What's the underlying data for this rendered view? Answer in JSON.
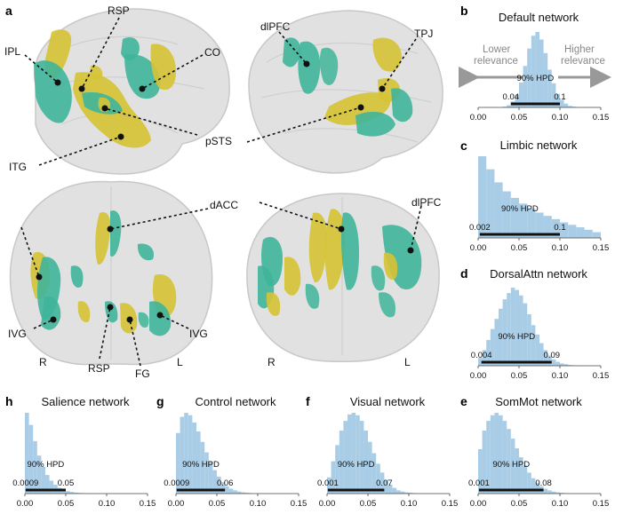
{
  "panel_labels": {
    "a": "a",
    "b": "b",
    "c": "c",
    "d": "d",
    "e": "e",
    "f": "f",
    "g": "g",
    "h": "h"
  },
  "brain_labels": {
    "rsp_top": "RSP",
    "ipl": "IPL",
    "co": "CO",
    "dlpfc_top": "dlPFC",
    "tpj": "TPJ",
    "psts": "pSTS",
    "itg": "ITG",
    "dacc": "dACC",
    "dlpfc_bottom": "dlPFC",
    "ivg_left": "IVG",
    "ivg_right": "IVG",
    "rsp_bottom": "RSP",
    "fg": "FG",
    "r_left": "R",
    "l_left": "L",
    "r_right": "R",
    "l_right": "L"
  },
  "relevance": {
    "lower": "Lower",
    "lower2": "relevance",
    "higher": "Higher",
    "higher2": "relevance"
  },
  "colors": {
    "hist_fill": "#a9cde6",
    "green": "#3fb59a",
    "yellow": "#d6c335",
    "brain": "#dcdcdc"
  },
  "chart_data": [
    {
      "type": "bar",
      "panel": "b",
      "title": "Default network",
      "x_ticks": [
        "0.00",
        "0.05",
        "0.10",
        "0.15"
      ],
      "xlim": [
        0,
        0.15
      ],
      "hpd_label": "90% HPD",
      "hpd": [
        0.04,
        0.1
      ],
      "hpd_low_label": "0.04",
      "hpd_high_label": "0.1",
      "bins": [
        0.0,
        0.005,
        0.01,
        0.015,
        0.02,
        0.025,
        0.03,
        0.035,
        0.04,
        0.045,
        0.05,
        0.055,
        0.06,
        0.065,
        0.07,
        0.075,
        0.08,
        0.085,
        0.09,
        0.095,
        0.1,
        0.105,
        0.11,
        0.115,
        0.12,
        0.125,
        0.13,
        0.135,
        0.14,
        0.145
      ],
      "values": [
        0,
        0,
        0,
        0,
        0,
        0,
        0.01,
        0.03,
        0.08,
        0.17,
        0.33,
        0.55,
        0.78,
        0.95,
        1.0,
        0.9,
        0.72,
        0.5,
        0.32,
        0.18,
        0.1,
        0.05,
        0.02,
        0.01,
        0,
        0,
        0,
        0,
        0,
        0
      ]
    },
    {
      "type": "bar",
      "panel": "c",
      "title": "Limbic network",
      "x_ticks": [
        "0.00",
        "0.05",
        "0.10",
        "0.15"
      ],
      "xlim": [
        0,
        0.15
      ],
      "hpd_label": "90% HPD",
      "hpd": [
        0.002,
        0.1
      ],
      "hpd_low_label": "0.002",
      "hpd_high_label": "0.1",
      "bins": [
        0.0,
        0.01,
        0.02,
        0.03,
        0.04,
        0.05,
        0.06,
        0.07,
        0.08,
        0.09,
        0.1,
        0.11,
        0.12,
        0.13,
        0.14
      ],
      "values": [
        1.0,
        0.84,
        0.68,
        0.57,
        0.49,
        0.42,
        0.36,
        0.31,
        0.27,
        0.23,
        0.19,
        0.16,
        0.13,
        0.1,
        0.07
      ]
    },
    {
      "type": "bar",
      "panel": "d",
      "title": "DorsalAttn network",
      "x_ticks": [
        "0.00",
        "0.05",
        "0.10",
        "0.15"
      ],
      "xlim": [
        0,
        0.15
      ],
      "hpd_label": "90% HPD",
      "hpd": [
        0.004,
        0.09
      ],
      "hpd_low_label": "0.004",
      "hpd_high_label": "0.09",
      "bins": [
        0.0,
        0.005,
        0.01,
        0.015,
        0.02,
        0.025,
        0.03,
        0.035,
        0.04,
        0.045,
        0.05,
        0.055,
        0.06,
        0.065,
        0.07,
        0.075,
        0.08,
        0.085,
        0.09,
        0.095,
        0.1,
        0.105,
        0.11,
        0.115,
        0.12,
        0.125,
        0.13,
        0.135,
        0.14,
        0.145
      ],
      "values": [
        0.1,
        0.2,
        0.33,
        0.47,
        0.6,
        0.73,
        0.85,
        0.93,
        1.0,
        0.97,
        0.9,
        0.8,
        0.66,
        0.52,
        0.4,
        0.29,
        0.2,
        0.13,
        0.08,
        0.05,
        0.03,
        0.02,
        0.01,
        0.005,
        0,
        0,
        0,
        0,
        0,
        0
      ]
    },
    {
      "type": "bar",
      "panel": "e",
      "title": "SomMot network",
      "x_ticks": [
        "0.00",
        "0.05",
        "0.10",
        "0.15"
      ],
      "xlim": [
        0,
        0.15
      ],
      "hpd_label": "90% HPD",
      "hpd": [
        0.001,
        0.08
      ],
      "hpd_low_label": "0.001",
      "hpd_high_label": "0.08",
      "bins": [
        0.0,
        0.005,
        0.01,
        0.015,
        0.02,
        0.025,
        0.03,
        0.035,
        0.04,
        0.045,
        0.05,
        0.055,
        0.06,
        0.065,
        0.07,
        0.075,
        0.08,
        0.085,
        0.09,
        0.095,
        0.1,
        0.105,
        0.11,
        0.115,
        0.12,
        0.125,
        0.13,
        0.135,
        0.14,
        0.145
      ],
      "values": [
        0.55,
        0.78,
        0.9,
        0.97,
        1.0,
        0.97,
        0.9,
        0.8,
        0.68,
        0.56,
        0.45,
        0.35,
        0.26,
        0.19,
        0.13,
        0.09,
        0.06,
        0.04,
        0.025,
        0.015,
        0.01,
        0.005,
        0,
        0,
        0,
        0,
        0,
        0,
        0,
        0
      ]
    },
    {
      "type": "bar",
      "panel": "f",
      "title": "Visual network",
      "x_ticks": [
        "0.00",
        "0.05",
        "0.10",
        "0.15"
      ],
      "xlim": [
        0,
        0.15
      ],
      "hpd_label": "90% HPD",
      "hpd": [
        0.001,
        0.07
      ],
      "hpd_low_label": "0.001",
      "hpd_high_label": "0.07",
      "bins": [
        0.0,
        0.005,
        0.01,
        0.015,
        0.02,
        0.025,
        0.03,
        0.035,
        0.04,
        0.045,
        0.05,
        0.055,
        0.06,
        0.065,
        0.07,
        0.075,
        0.08,
        0.085,
        0.09,
        0.095,
        0.1,
        0.105,
        0.11,
        0.115,
        0.12,
        0.125,
        0.13,
        0.135,
        0.14,
        0.145
      ],
      "values": [
        0.2,
        0.4,
        0.6,
        0.78,
        0.9,
        0.98,
        1.0,
        0.97,
        0.9,
        0.78,
        0.64,
        0.5,
        0.37,
        0.26,
        0.17,
        0.11,
        0.07,
        0.04,
        0.025,
        0.015,
        0.01,
        0.005,
        0,
        0,
        0,
        0,
        0,
        0,
        0,
        0
      ]
    },
    {
      "type": "bar",
      "panel": "g",
      "title": "Control network",
      "x_ticks": [
        "0.00",
        "0.05",
        "0.10",
        "0.15"
      ],
      "xlim": [
        0,
        0.15
      ],
      "hpd_label": "90% HPD",
      "hpd": [
        0.0009,
        0.06
      ],
      "hpd_low_label": "0.0009",
      "hpd_high_label": "0.06",
      "bins": [
        0.0,
        0.005,
        0.01,
        0.015,
        0.02,
        0.025,
        0.03,
        0.035,
        0.04,
        0.045,
        0.05,
        0.055,
        0.06,
        0.065,
        0.07,
        0.075,
        0.08,
        0.085,
        0.09,
        0.095,
        0.1,
        0.105,
        0.11,
        0.115,
        0.12,
        0.125,
        0.13,
        0.135,
        0.14,
        0.145
      ],
      "values": [
        0.75,
        0.95,
        1.0,
        0.97,
        0.88,
        0.77,
        0.64,
        0.51,
        0.39,
        0.29,
        0.21,
        0.14,
        0.09,
        0.06,
        0.04,
        0.025,
        0.015,
        0.01,
        0.005,
        0,
        0,
        0,
        0,
        0,
        0,
        0,
        0,
        0,
        0,
        0
      ]
    },
    {
      "type": "bar",
      "panel": "h",
      "title": "Salience network",
      "x_ticks": [
        "0.00",
        "0.05",
        "0.10",
        "0.15"
      ],
      "xlim": [
        0,
        0.15
      ],
      "hpd_label": "90% HPD",
      "hpd": [
        0.0009,
        0.05
      ],
      "hpd_low_label": "0.0009",
      "hpd_high_label": "0.05",
      "bins": [
        0.0,
        0.005,
        0.01,
        0.015,
        0.02,
        0.025,
        0.03,
        0.035,
        0.04,
        0.045,
        0.05,
        0.055,
        0.06,
        0.065,
        0.07,
        0.075,
        0.08,
        0.085,
        0.09,
        0.095,
        0.1,
        0.105,
        0.11,
        0.115,
        0.12,
        0.125,
        0.13,
        0.135,
        0.14,
        0.145
      ],
      "values": [
        1.0,
        0.85,
        0.65,
        0.47,
        0.33,
        0.23,
        0.16,
        0.11,
        0.07,
        0.05,
        0.03,
        0.02,
        0.012,
        0.008,
        0.005,
        0.003,
        0,
        0,
        0,
        0,
        0,
        0,
        0,
        0,
        0,
        0,
        0,
        0,
        0,
        0
      ]
    }
  ]
}
